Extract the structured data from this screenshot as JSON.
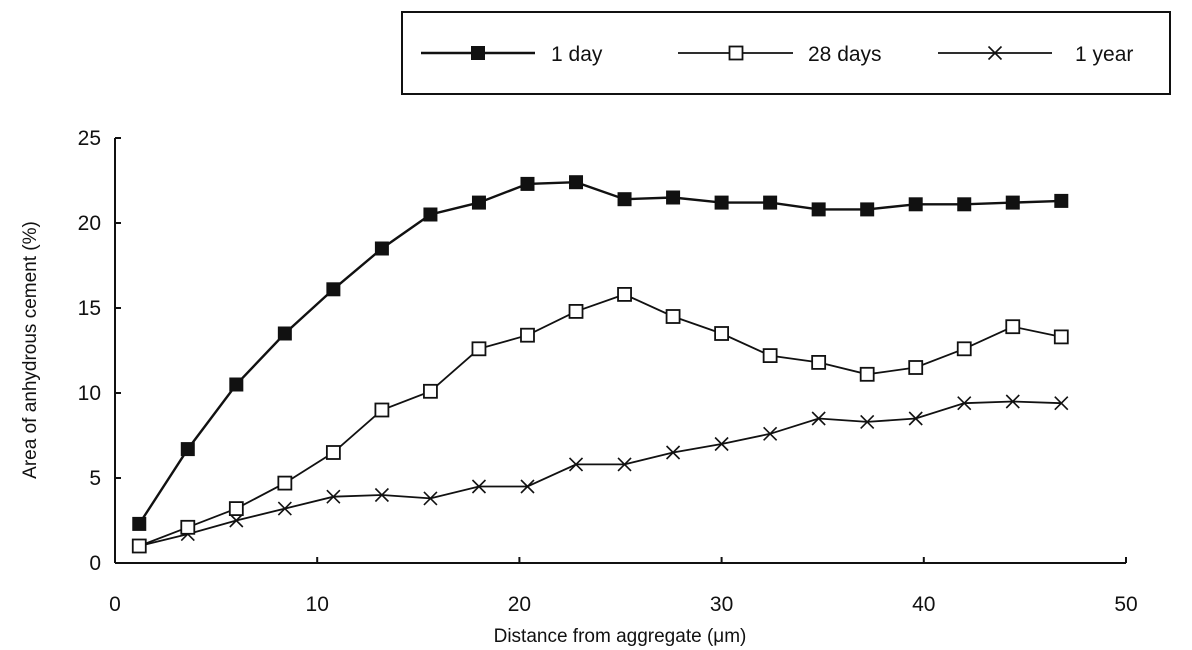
{
  "chart_data": {
    "type": "line",
    "xlabel": "Distance from aggregate (μm)",
    "ylabel": "Area of anhydrous cement (%)",
    "xlim": [
      0,
      50
    ],
    "ylim": [
      0,
      25
    ],
    "xticks": [
      "0",
      "10",
      "20",
      "30",
      "40",
      "50"
    ],
    "yticks": [
      "0",
      "5",
      "10",
      "15",
      "20",
      "25"
    ],
    "grid": false,
    "legend_position": "top-right",
    "x": [
      1.2,
      3.6,
      6.0,
      8.4,
      10.8,
      13.2,
      15.6,
      18.0,
      20.4,
      22.8,
      25.2,
      27.6,
      30.0,
      32.4,
      34.8,
      37.2,
      39.6,
      42.0,
      44.4,
      46.8
    ],
    "series": [
      {
        "name": "1 day",
        "marker": "filled-square",
        "values": [
          2.3,
          6.7,
          10.5,
          13.5,
          16.1,
          18.5,
          20.5,
          21.2,
          22.3,
          22.4,
          21.4,
          21.5,
          21.2,
          21.2,
          20.8,
          20.8,
          21.1,
          21.1,
          21.2,
          21.3
        ]
      },
      {
        "name": "28 days",
        "marker": "open-square",
        "values": [
          1.0,
          2.1,
          3.2,
          4.7,
          6.5,
          9.0,
          10.1,
          12.6,
          13.4,
          14.8,
          15.8,
          14.5,
          13.5,
          12.2,
          11.8,
          11.1,
          11.5,
          12.6,
          13.9,
          13.3
        ]
      },
      {
        "name": "1 year",
        "marker": "cross",
        "values": [
          1.0,
          1.7,
          2.5,
          3.2,
          3.9,
          4.0,
          3.8,
          4.5,
          4.5,
          5.8,
          5.8,
          6.5,
          7.0,
          7.6,
          8.5,
          8.3,
          8.5,
          9.4,
          9.5,
          9.4
        ]
      }
    ]
  },
  "colors": {
    "line": "#111111",
    "background": "#ffffff"
  }
}
